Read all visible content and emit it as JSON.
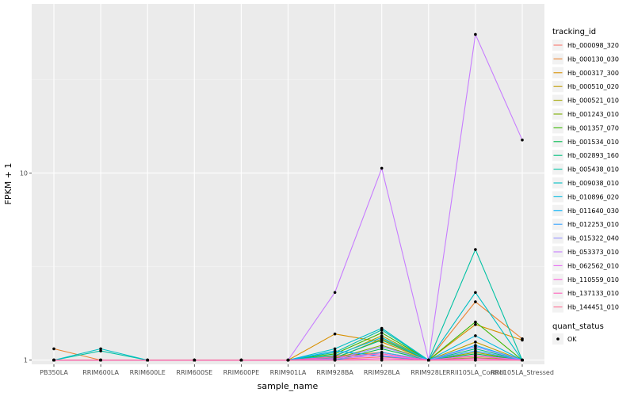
{
  "chart_data": {
    "type": "line",
    "xlabel": "sample_name",
    "ylabel": "FPKM + 1",
    "y_scale": "log10",
    "ylim": [
      0.95,
      80
    ],
    "y_ticks": [
      1,
      10
    ],
    "categories": [
      "PB350LA",
      "RRIM600LA",
      "RRIM600LE",
      "RRIM600SE",
      "RRIM600PE",
      "RRIM901LA",
      "RRIM928BA",
      "RRIM928LA",
      "RRIM928LE",
      "RRII105LA_Control",
      "RRII105LA_Stressed"
    ],
    "legend": {
      "title": "tracking_id",
      "position": "right"
    },
    "shape_legend": {
      "title": "quant_status",
      "entries": [
        "OK"
      ]
    },
    "series": [
      {
        "name": "Hb_000098_320",
        "color": "#F8766D",
        "values": [
          1,
          1,
          1,
          1,
          1,
          1,
          1.01,
          1.04,
          1,
          1.05,
          1
        ]
      },
      {
        "name": "Hb_000130_030",
        "color": "#EA8331",
        "values": [
          1.15,
          1,
          1,
          1,
          1,
          1,
          1.05,
          1.1,
          1,
          2.05,
          1.3
        ]
      },
      {
        "name": "Hb_000317_300",
        "color": "#D89000",
        "values": [
          1,
          1,
          1,
          1,
          1,
          1,
          1.38,
          1.25,
          1,
          1.55,
          1.28
        ]
      },
      {
        "name": "Hb_000510_020",
        "color": "#C09B00",
        "values": [
          1,
          1,
          1,
          1,
          1,
          1,
          1.02,
          1.3,
          1,
          1.25,
          1
        ]
      },
      {
        "name": "Hb_000521_010",
        "color": "#A3A500",
        "values": [
          1,
          1,
          1,
          1,
          1,
          1,
          1.05,
          1.35,
          1,
          1.1,
          1
        ]
      },
      {
        "name": "Hb_001243_010",
        "color": "#7CAE00",
        "values": [
          1,
          1,
          1,
          1,
          1,
          1,
          1.02,
          1.2,
          1,
          1.03,
          1
        ]
      },
      {
        "name": "Hb_001357_070",
        "color": "#39B600",
        "values": [
          1,
          1,
          1,
          1,
          1,
          1,
          1.08,
          1.4,
          1,
          1.6,
          1
        ]
      },
      {
        "name": "Hb_001534_010",
        "color": "#00BB4E",
        "values": [
          1,
          1,
          1,
          1,
          1,
          1,
          1.0,
          1.15,
          1,
          1.08,
          1
        ]
      },
      {
        "name": "Hb_002893_160",
        "color": "#00BF7D",
        "values": [
          1,
          1,
          1,
          1,
          1,
          1,
          1.03,
          1.28,
          1,
          1.15,
          1
        ]
      },
      {
        "name": "Hb_005438_010",
        "color": "#00C1A3",
        "values": [
          1,
          1.12,
          1,
          1,
          1,
          1,
          1.1,
          1.45,
          1,
          3.9,
          1
        ]
      },
      {
        "name": "Hb_009038_010",
        "color": "#00BFC4",
        "values": [
          1,
          1.15,
          1,
          1,
          1,
          1,
          1.15,
          1.48,
          1,
          2.3,
          1
        ]
      },
      {
        "name": "Hb_010896_020",
        "color": "#00BAE0",
        "values": [
          1,
          1,
          1,
          1,
          1,
          1,
          1.06,
          1.32,
          1,
          1.35,
          1
        ]
      },
      {
        "name": "Hb_011640_030",
        "color": "#00B0F6",
        "values": [
          1,
          1,
          1,
          1,
          1,
          1,
          1.12,
          1.05,
          1,
          1.2,
          1
        ]
      },
      {
        "name": "Hb_012253_010",
        "color": "#35A2FF",
        "values": [
          1,
          1,
          1,
          1,
          1,
          1,
          1.0,
          1.1,
          1,
          1.12,
          1
        ]
      },
      {
        "name": "Hb_015322_040",
        "color": "#9590FF",
        "values": [
          1,
          1,
          1,
          1,
          1,
          1,
          1.01,
          1.18,
          1,
          1.18,
          1
        ]
      },
      {
        "name": "Hb_053373_010",
        "color": "#C77CFF",
        "values": [
          1,
          1,
          1,
          1,
          1,
          1,
          2.3,
          10.6,
          1,
          55,
          15
        ]
      },
      {
        "name": "Hb_062562_010",
        "color": "#E76BF3",
        "values": [
          1,
          1,
          1,
          1,
          1,
          1,
          1.02,
          1.06,
          1,
          1.06,
          1
        ]
      },
      {
        "name": "Hb_110559_010",
        "color": "#FA62DB",
        "values": [
          1,
          1,
          1,
          1,
          1,
          1,
          1.0,
          1.02,
          1,
          1.02,
          1
        ]
      },
      {
        "name": "Hb_137133_010",
        "color": "#FF62BC",
        "values": [
          1,
          1,
          1,
          1,
          1,
          1,
          1.04,
          1.08,
          1,
          1.0,
          1
        ]
      },
      {
        "name": "Hb_144451_010",
        "color": "#FF6C91",
        "values": [
          1,
          1,
          1,
          1,
          1,
          1,
          1.0,
          1.0,
          1,
          1.0,
          1
        ]
      }
    ]
  }
}
